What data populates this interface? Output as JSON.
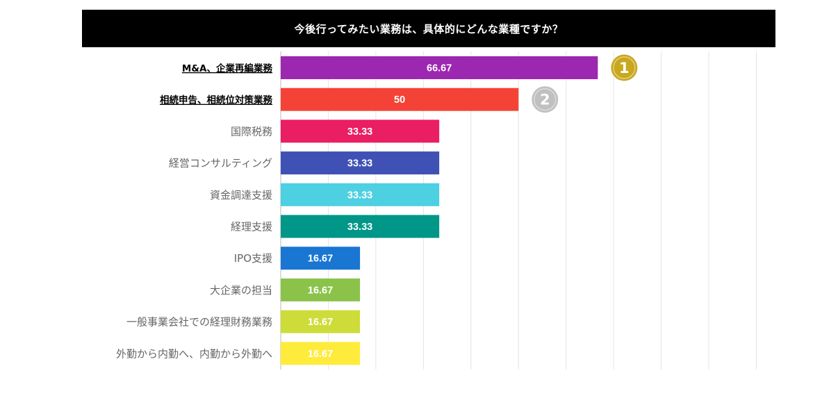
{
  "chart_data": {
    "type": "bar",
    "orientation": "horizontal",
    "title": "今後行ってみたい業務は、具体的にどんな業種ですか？",
    "categories": [
      "M&A、企業再編業務",
      "相続申告、相続位対策業務",
      "国際税務",
      "経営コンサルティング",
      "資金調達支援",
      "経理支援",
      "IPO支援",
      "大企業の担当",
      "一般事業会社での経理財務業務",
      "外勤から内勤へ、内勤から外勤へ"
    ],
    "values": [
      66.67,
      50,
      33.33,
      33.33,
      33.33,
      33.33,
      16.67,
      16.67,
      16.67,
      16.67
    ],
    "value_labels": [
      "66.67",
      "50",
      "33.33",
      "33.33",
      "33.33",
      "33.33",
      "16.67",
      "16.67",
      "16.67",
      "16.67"
    ],
    "colors": [
      "#9c27b0",
      "#f44336",
      "#e91e63",
      "#3f51b5",
      "#4dd0e1",
      "#009688",
      "#1976d2",
      "#8bc34a",
      "#cddc39",
      "#ffeb3b"
    ],
    "highlighted": [
      true,
      true,
      false,
      false,
      false,
      false,
      false,
      false,
      false,
      false
    ],
    "xlim": [
      0,
      100
    ],
    "grid": true,
    "xlabel": "",
    "ylabel": "",
    "rank_badges": [
      {
        "rank": "1",
        "category_index": 0,
        "color": "#c9a81f"
      },
      {
        "rank": "2",
        "category_index": 1,
        "color": "#c0c0c0"
      }
    ]
  }
}
